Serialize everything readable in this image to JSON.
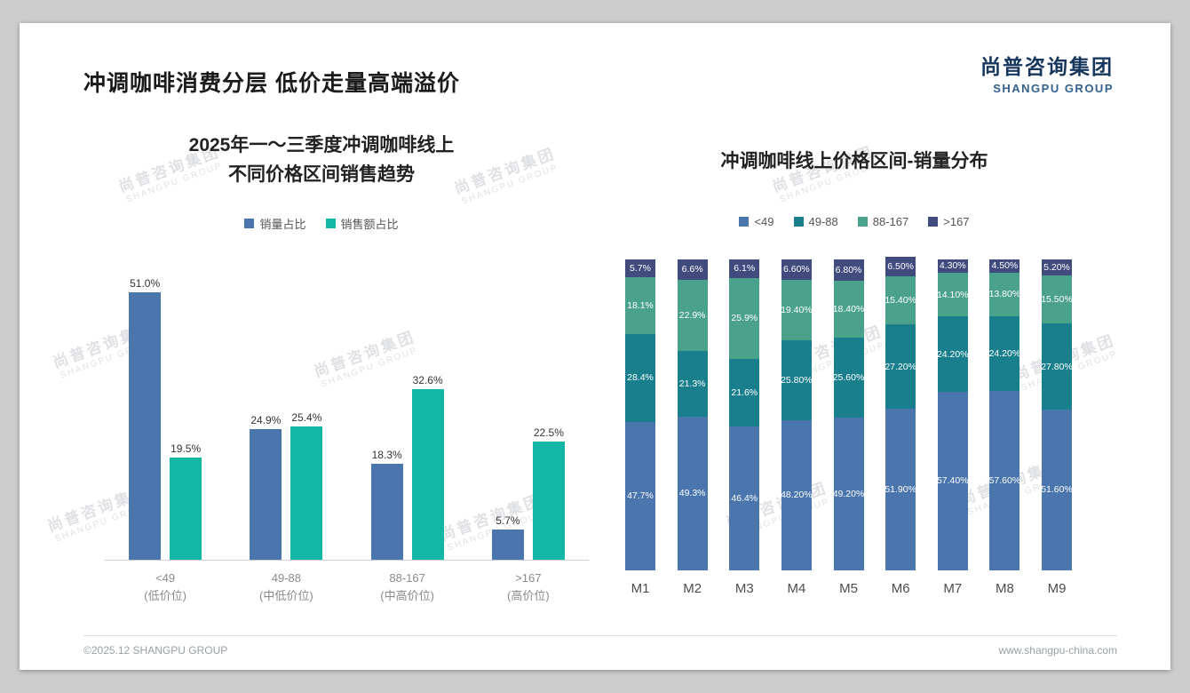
{
  "page": {
    "title": "冲调咖啡消费分层 低价走量高端溢价",
    "logo_cn": "尚普咨询集团",
    "logo_en": "SHANGPU GROUP",
    "footer_left": "©2025.12 SHANGPU GROUP",
    "footer_right": "www.shangpu-china.com",
    "watermark_cn": "尚普咨询集团",
    "watermark_en": "SHANGPU GROUP"
  },
  "colors": {
    "volume_blue": "#4a76ad",
    "sales_teal": "#14b7a6",
    "seg_under49": "#4a76ad",
    "seg_49_88": "#1a7f8d",
    "seg_88_167": "#4ba28c",
    "seg_over167": "#414b7e",
    "logo_navy": "#16365c"
  },
  "chart_data": [
    {
      "id": "price-band-trend",
      "type": "bar",
      "stacked": false,
      "title_line1": "2025年一～三季度冲调咖啡线上",
      "title_line2": "不同价格区间销售趋势",
      "legend_position": "top",
      "grid": false,
      "ylim": [
        0,
        55
      ],
      "categories": [
        [
          "<49",
          "(低价位)"
        ],
        [
          "49-88",
          "(中低价位)"
        ],
        [
          "88-167",
          "(中高价位)"
        ],
        [
          ">167",
          "(高价位)"
        ]
      ],
      "series": [
        {
          "name": "销量占比",
          "color": "#4a76ad",
          "values": [
            51.0,
            24.9,
            18.3,
            5.7
          ],
          "labels": [
            "51.0%",
            "24.9%",
            "18.3%",
            "5.7%"
          ]
        },
        {
          "name": "销售额占比",
          "color": "#14b7a6",
          "values": [
            19.5,
            25.4,
            32.6,
            22.5
          ],
          "labels": [
            "19.5%",
            "25.4%",
            "32.6%",
            "22.5%"
          ]
        }
      ]
    },
    {
      "id": "monthly-volume-distribution",
      "type": "bar",
      "stacked": true,
      "title": "冲调咖啡线上价格区间-销量分布",
      "legend_position": "top",
      "grid": false,
      "ylim": [
        0,
        100
      ],
      "categories": [
        "M1",
        "M2",
        "M3",
        "M4",
        "M5",
        "M6",
        "M7",
        "M8",
        "M9"
      ],
      "series": [
        {
          "name": "<49",
          "color": "#4a76ad",
          "values": [
            47.7,
            49.3,
            46.4,
            48.2,
            49.2,
            51.9,
            57.4,
            57.6,
            51.6
          ],
          "labels": [
            "47.7%",
            "49.3%",
            "46.4%",
            "48.20%",
            "49.20%",
            "51.90%",
            "57.40%",
            "57.60%",
            "51.60%"
          ]
        },
        {
          "name": "49-88",
          "color": "#1a7f8d",
          "values": [
            28.4,
            21.3,
            21.6,
            25.8,
            25.6,
            27.2,
            24.2,
            24.2,
            27.8
          ],
          "labels": [
            "28.4%",
            "21.3%",
            "21.6%",
            "25.80%",
            "25.60%",
            "27.20%",
            "24.20%",
            "24.20%",
            "27.80%"
          ]
        },
        {
          "name": "88-167",
          "color": "#4ba28c",
          "values": [
            18.1,
            22.9,
            25.9,
            19.4,
            18.4,
            15.4,
            14.1,
            13.8,
            15.5
          ],
          "labels": [
            "18.1%",
            "22.9%",
            "25.9%",
            "19.40%",
            "18.40%",
            "15.40%",
            "14.10%",
            "13.80%",
            "15.50%"
          ]
        },
        {
          "name": ">167",
          "color": "#414b7e",
          "values": [
            5.7,
            6.6,
            6.1,
            6.6,
            6.8,
            6.5,
            4.3,
            4.5,
            5.2
          ],
          "labels": [
            "5.7%",
            "6.6%",
            "6.1%",
            "6.60%",
            "6.80%",
            "6.50%",
            "4.30%",
            "4.50%",
            "5.20%"
          ]
        }
      ]
    }
  ]
}
